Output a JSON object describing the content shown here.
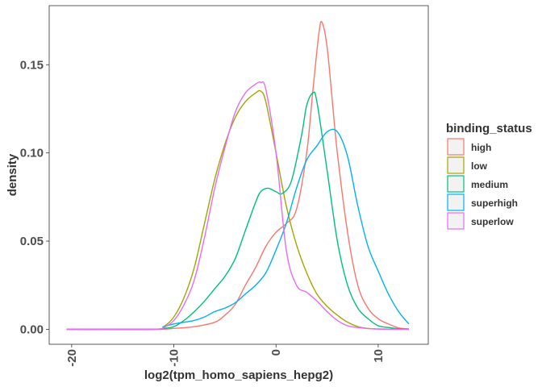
{
  "chart_data": {
    "type": "line",
    "title": "",
    "xlabel": "log2(tpm_homo_sapiens_hepg2)",
    "ylabel": "density",
    "xlim": [
      -22.2,
      14.9
    ],
    "ylim": [
      -0.0085,
      0.1835
    ],
    "x_ticks": [
      -20,
      -10,
      0,
      10
    ],
    "x_tick_labels": [
      "-20",
      "-10",
      "0",
      "10"
    ],
    "y_ticks": [
      0.0,
      0.05,
      0.1,
      0.15
    ],
    "y_tick_labels": [
      "0.00",
      "0.05",
      "0.10",
      "0.15"
    ],
    "grid": false,
    "legend_position": "right",
    "legend_title": "binding_status",
    "series": [
      {
        "name": "high",
        "color": "#F8766D",
        "points": [
          [
            -20.5,
            0
          ],
          [
            -12,
            0
          ],
          [
            -10,
            0.0005
          ],
          [
            -8,
            0.0015
          ],
          [
            -6,
            0.004
          ],
          [
            -5,
            0.008
          ],
          [
            -4,
            0.014
          ],
          [
            -3,
            0.025
          ],
          [
            -2,
            0.035
          ],
          [
            -1,
            0.047
          ],
          [
            0,
            0.055
          ],
          [
            1,
            0.06
          ],
          [
            2,
            0.068
          ],
          [
            3,
            0.1
          ],
          [
            3.6,
            0.135
          ],
          [
            4.2,
            0.168
          ],
          [
            4.5,
            0.174
          ],
          [
            5,
            0.16
          ],
          [
            5.5,
            0.13
          ],
          [
            6,
            0.1
          ],
          [
            7,
            0.055
          ],
          [
            8,
            0.025
          ],
          [
            9,
            0.012
          ],
          [
            10,
            0.006
          ],
          [
            11,
            0.003
          ],
          [
            12,
            0.0008
          ],
          [
            13,
            0.0002
          ]
        ]
      },
      {
        "name": "low",
        "color": "#A3A500",
        "points": [
          [
            -20.5,
            0
          ],
          [
            -12,
            0
          ],
          [
            -11,
            0.0015
          ],
          [
            -10,
            0.007
          ],
          [
            -9,
            0.018
          ],
          [
            -8,
            0.035
          ],
          [
            -7,
            0.06
          ],
          [
            -6,
            0.085
          ],
          [
            -5,
            0.105
          ],
          [
            -4,
            0.12
          ],
          [
            -3,
            0.129
          ],
          [
            -2,
            0.134
          ],
          [
            -1.5,
            0.135
          ],
          [
            -1,
            0.129
          ],
          [
            0,
            0.1
          ],
          [
            1,
            0.07
          ],
          [
            2,
            0.048
          ],
          [
            3,
            0.032
          ],
          [
            4,
            0.02
          ],
          [
            5,
            0.013
          ],
          [
            6,
            0.008
          ],
          [
            7,
            0.004
          ],
          [
            8,
            0.0015
          ],
          [
            9,
            0.0005
          ],
          [
            10,
            0.0002
          ],
          [
            12,
            0
          ],
          [
            13,
            0
          ]
        ]
      },
      {
        "name": "medium",
        "color": "#00BF7D",
        "points": [
          [
            -20.5,
            0
          ],
          [
            -12,
            0
          ],
          [
            -11,
            0.0005
          ],
          [
            -10,
            0.0015
          ],
          [
            -9,
            0.005
          ],
          [
            -8,
            0.01
          ],
          [
            -7,
            0.016
          ],
          [
            -6,
            0.023
          ],
          [
            -5,
            0.03
          ],
          [
            -4,
            0.04
          ],
          [
            -3,
            0.056
          ],
          [
            -2,
            0.072
          ],
          [
            -1.5,
            0.078
          ],
          [
            -0.8,
            0.08
          ],
          [
            0,
            0.078
          ],
          [
            0.6,
            0.077
          ],
          [
            1.5,
            0.084
          ],
          [
            2.5,
            0.11
          ],
          [
            3,
            0.127
          ],
          [
            3.6,
            0.134
          ],
          [
            4,
            0.129
          ],
          [
            5,
            0.09
          ],
          [
            6,
            0.05
          ],
          [
            7,
            0.025
          ],
          [
            8,
            0.012
          ],
          [
            9,
            0.006
          ],
          [
            10,
            0.002
          ],
          [
            11,
            0.001
          ],
          [
            12,
            0.0003
          ],
          [
            13,
            0.0001
          ]
        ]
      },
      {
        "name": "superhigh",
        "color": "#00B0F6",
        "points": [
          [
            -20.5,
            0
          ],
          [
            -12,
            0
          ],
          [
            -11,
            0.0015
          ],
          [
            -10,
            0.003
          ],
          [
            -9,
            0.004
          ],
          [
            -8,
            0.005
          ],
          [
            -7,
            0.007
          ],
          [
            -6,
            0.01
          ],
          [
            -5,
            0.012
          ],
          [
            -4,
            0.015
          ],
          [
            -3,
            0.02
          ],
          [
            -2,
            0.025
          ],
          [
            -1,
            0.032
          ],
          [
            0,
            0.045
          ],
          [
            1,
            0.06
          ],
          [
            2,
            0.08
          ],
          [
            3,
            0.096
          ],
          [
            4,
            0.104
          ],
          [
            5,
            0.112
          ],
          [
            6,
            0.112
          ],
          [
            7,
            0.098
          ],
          [
            8,
            0.07
          ],
          [
            9,
            0.047
          ],
          [
            10,
            0.033
          ],
          [
            11,
            0.02
          ],
          [
            12,
            0.01
          ],
          [
            13,
            0.003
          ]
        ]
      },
      {
        "name": "superlow",
        "color": "#E76BF3",
        "points": [
          [
            -20.5,
            0
          ],
          [
            -12,
            0
          ],
          [
            -11,
            0.001
          ],
          [
            -10,
            0.005
          ],
          [
            -9,
            0.014
          ],
          [
            -8,
            0.028
          ],
          [
            -7,
            0.052
          ],
          [
            -6,
            0.08
          ],
          [
            -5,
            0.103
          ],
          [
            -4,
            0.123
          ],
          [
            -3,
            0.134
          ],
          [
            -2,
            0.139
          ],
          [
            -1.5,
            0.14
          ],
          [
            -1,
            0.136
          ],
          [
            0,
            0.1
          ],
          [
            1,
            0.045
          ],
          [
            2,
            0.025
          ],
          [
            3,
            0.021
          ],
          [
            4,
            0.016
          ],
          [
            5,
            0.01
          ],
          [
            6,
            0.005
          ],
          [
            7,
            0.002
          ],
          [
            8,
            0.001
          ],
          [
            9,
            0.0004
          ],
          [
            10,
            0.0001
          ],
          [
            12,
            0
          ],
          [
            13,
            0
          ]
        ]
      }
    ]
  }
}
